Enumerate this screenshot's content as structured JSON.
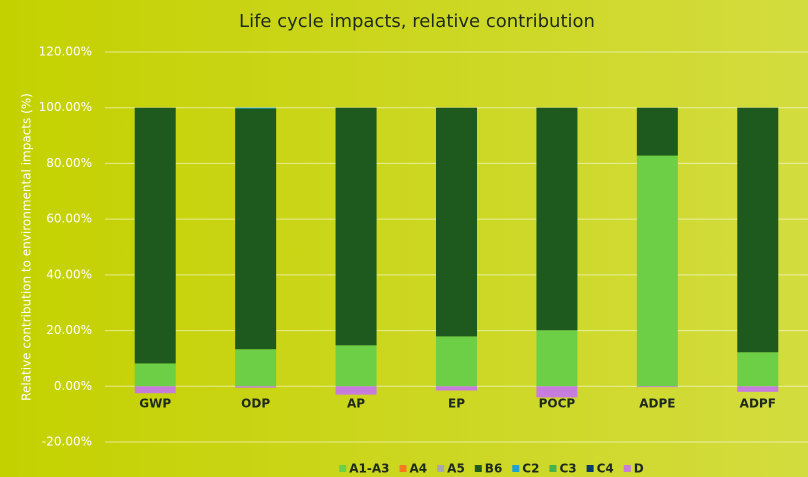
{
  "chart_data": {
    "type": "stacked_bar",
    "title": "Life cycle impacts, relative contribution",
    "y_label": "Relative contribution to environmental impacts (%)",
    "categories": [
      "GWP",
      "ODP",
      "AP",
      "EP",
      "POCP",
      "ADPE",
      "ADPF"
    ],
    "series": [
      {
        "name": "A1-A3",
        "color": "#6dcf46",
        "values": [
          8.2,
          13.3,
          14.7,
          17.9,
          20.1,
          82.8,
          12.2
        ]
      },
      {
        "name": "A4",
        "color": "#f47b20",
        "values": [
          0,
          0,
          0,
          0,
          0,
          0,
          0
        ]
      },
      {
        "name": "A5",
        "color": "#a8a8a8",
        "values": [
          0,
          0,
          0,
          0,
          0,
          0,
          0
        ]
      },
      {
        "name": "B6",
        "color": "#1e5a1e",
        "values": [
          91.8,
          86.4,
          85.3,
          82.1,
          79.9,
          17.2,
          87.8
        ]
      },
      {
        "name": "C2",
        "color": "#1ea0d8",
        "values": [
          0,
          0.3,
          0,
          0,
          0,
          0,
          0
        ]
      },
      {
        "name": "C3",
        "color": "#4ab04a",
        "values": [
          0,
          0,
          0,
          0,
          0,
          0,
          0
        ]
      },
      {
        "name": "C4",
        "color": "#0a3a6a",
        "values": [
          0,
          0,
          0,
          0,
          0,
          0,
          0
        ]
      },
      {
        "name": "D",
        "color": "#c77ddc",
        "values": [
          -2.5,
          -0.5,
          -3,
          -1.5,
          -4,
          -0.3,
          -2
        ]
      }
    ],
    "ylim": [
      -20,
      120
    ],
    "yticks": [
      {
        "value": -20,
        "label": "-20.00%"
      },
      {
        "value": 0,
        "label": "0.00%"
      },
      {
        "value": 20,
        "label": "20.00%"
      },
      {
        "value": 40,
        "label": "40.00%"
      },
      {
        "value": 60,
        "label": "60.00%"
      },
      {
        "value": 80,
        "label": "80.00%"
      },
      {
        "value": 100,
        "label": "100.00%"
      },
      {
        "value": 120,
        "label": "120.00%"
      }
    ],
    "grid": true,
    "legend": "bottom"
  }
}
